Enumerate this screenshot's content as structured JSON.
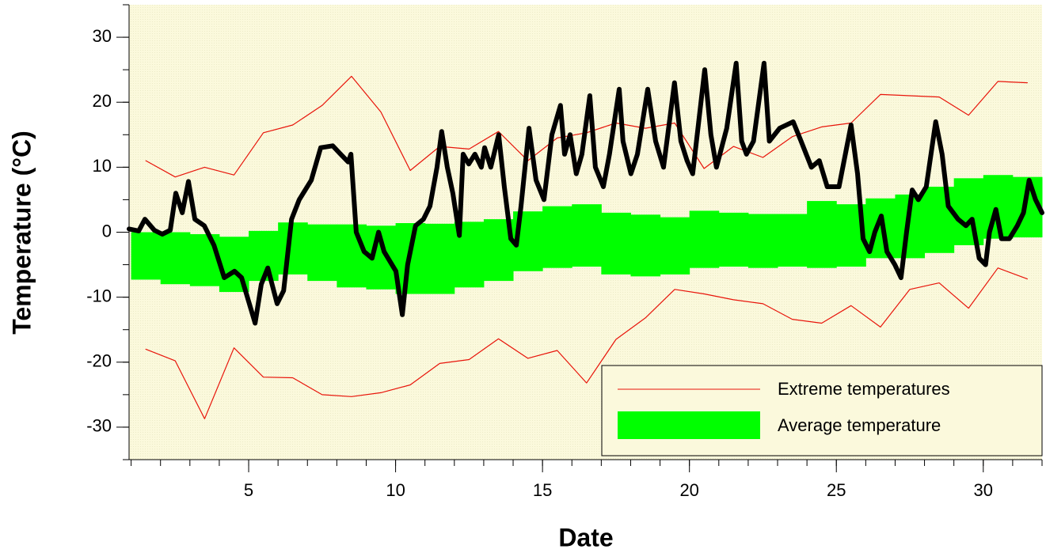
{
  "chart_data": {
    "type": "line",
    "xlabel": "Date",
    "ylabel": "Temperature (°C)",
    "xlim": [
      0.93,
      32.0
    ],
    "ylim": [
      -35,
      35
    ],
    "xticks": [
      5,
      10,
      15,
      20,
      25,
      30
    ],
    "yticks": [
      -30,
      -20,
      -10,
      0,
      10,
      20,
      30
    ],
    "xminor": [
      1,
      2,
      3,
      4,
      5,
      6,
      7,
      8,
      9,
      10,
      11,
      12,
      13,
      14,
      15,
      16,
      17,
      18,
      19,
      20,
      21,
      22,
      23,
      24,
      25,
      26,
      27,
      28,
      29,
      30,
      31,
      32
    ],
    "yminor": [
      -35,
      -30,
      -25,
      -20,
      -15,
      -10,
      -5,
      0,
      5,
      10,
      15,
      20,
      25,
      30,
      35
    ],
    "average": {
      "name": "Average temperature",
      "color": "#00ff00",
      "x": [
        1,
        2,
        3,
        4,
        5,
        6,
        7,
        8,
        9,
        10,
        11,
        12,
        13,
        14,
        15,
        16,
        17,
        18,
        19,
        20,
        21,
        22,
        23,
        24,
        25,
        26,
        27,
        28,
        29,
        30,
        31
      ],
      "high": [
        0,
        0,
        -0.3,
        -0.7,
        0.2,
        1.5,
        1.2,
        1.2,
        1,
        1.4,
        1.3,
        1.6,
        2,
        3.2,
        4,
        4.3,
        3,
        2.7,
        2.3,
        3.3,
        3,
        2.8,
        2.8,
        4.8,
        4.3,
        5.2,
        5.8,
        7,
        8.3,
        8.8,
        8.5
      ],
      "low": [
        -7.3,
        -8,
        -8.3,
        -9.2,
        -7.5,
        -6.5,
        -7.5,
        -8.5,
        -8.8,
        -9.5,
        -9.5,
        -8.5,
        -7.5,
        -6,
        -5.5,
        -5.3,
        -6.5,
        -6.8,
        -6.5,
        -5.5,
        -5.3,
        -5.5,
        -5.3,
        -5.5,
        -5.3,
        -4,
        -4,
        -3.2,
        -2,
        -1,
        -0.8
      ]
    },
    "extremes": {
      "name": "Extreme temperatures",
      "color": "#e8140a",
      "x": [
        1.5,
        2.5,
        3.5,
        4.5,
        5.5,
        6.5,
        7.5,
        8.5,
        9.5,
        10.5,
        11.5,
        12.5,
        13.5,
        14.5,
        15.5,
        16.5,
        17.5,
        18.5,
        19.5,
        20.5,
        21.5,
        22.5,
        23.5,
        24.5,
        25.5,
        26.5,
        27.5,
        28.5,
        29.5,
        30.5,
        31.5
      ],
      "upper": [
        11,
        8.5,
        10,
        8.8,
        15.3,
        16.5,
        19.5,
        24,
        18.5,
        9.5,
        13.2,
        12.8,
        15.5,
        11,
        14.5,
        15.3,
        16.8,
        16,
        16.8,
        9.8,
        13.2,
        11.5,
        14.7,
        16.2,
        16.8,
        21.2,
        21,
        20.8,
        18,
        23.2,
        23
      ],
      "lower": [
        -18,
        -19.8,
        -28.7,
        -17.8,
        -22.3,
        -22.4,
        -25,
        -25.3,
        -24.7,
        -23.5,
        -20.2,
        -19.6,
        -16.4,
        -19.4,
        -18.2,
        -23.2,
        -16.5,
        -13.2,
        -8.8,
        -9.5,
        -10.4,
        -11,
        -13.4,
        -14,
        -11.3,
        -14.6,
        -8.8,
        -7.8,
        -11.7,
        -5.5,
        -7.2
      ]
    },
    "temperature": {
      "color": "#000000",
      "x": [
        0.93,
        1.26,
        1.47,
        1.79,
        2.06,
        2.33,
        2.52,
        2.74,
        2.95,
        3.17,
        3.49,
        3.82,
        4.17,
        4.52,
        4.76,
        5.22,
        5.43,
        5.65,
        5.97,
        6.19,
        6.46,
        6.72,
        7.13,
        7.45,
        7.86,
        8.13,
        8.39,
        8.48,
        8.66,
        8.93,
        9.2,
        9.42,
        9.61,
        10.01,
        10.23,
        10.41,
        10.68,
        10.95,
        11.17,
        11.41,
        11.57,
        11.76,
        11.95,
        12.17,
        12.3,
        12.49,
        12.7,
        12.92,
        13.03,
        13.24,
        13.51,
        13.7,
        13.92,
        14.11,
        14.27,
        14.54,
        14.78,
        15.05,
        15.32,
        15.61,
        15.75,
        15.94,
        16.15,
        16.34,
        16.61,
        16.8,
        17.07,
        17.28,
        17.61,
        17.74,
        18.01,
        18.23,
        18.58,
        18.85,
        19.12,
        19.49,
        19.71,
        19.92,
        20.11,
        20.52,
        20.73,
        20.92,
        21.27,
        21.59,
        21.78,
        21.94,
        22.18,
        22.54,
        22.72,
        23.07,
        23.53,
        23.8,
        24.15,
        24.42,
        24.69,
        25.09,
        25.5,
        25.72,
        25.91,
        26.13,
        26.31,
        26.53,
        26.72,
        26.99,
        27.2,
        27.39,
        27.58,
        27.79,
        28.06,
        28.38,
        28.6,
        28.81,
        29.14,
        29.41,
        29.62,
        29.86,
        30.08,
        30.21,
        30.43,
        30.62,
        30.89,
        31.16,
        31.37,
        31.56,
        31.78,
        32.0
      ],
      "values": [
        0.5,
        0.2,
        2,
        0.3,
        -0.3,
        0.3,
        6,
        3,
        7.8,
        2,
        1,
        -2,
        -7,
        -6,
        -7,
        -14,
        -8,
        -5.5,
        -11,
        -9,
        2,
        5,
        8,
        13,
        13.3,
        12,
        10.8,
        12,
        0,
        -3,
        -4,
        0,
        -3,
        -6,
        -12.7,
        -5,
        1,
        2,
        4,
        10,
        15.5,
        10,
        6,
        -0.5,
        12,
        10.5,
        12,
        10,
        13,
        10,
        15,
        7,
        -1,
        -2,
        4,
        16,
        8,
        5,
        15,
        19.5,
        12,
        15,
        9,
        12,
        21,
        10,
        7,
        12,
        22,
        14,
        9,
        12,
        22,
        14,
        10,
        23,
        14,
        11,
        9,
        25,
        15,
        10,
        16,
        26,
        14,
        12,
        14,
        26,
        14,
        16,
        17,
        14,
        10,
        11,
        7,
        7,
        16.5,
        9,
        -1,
        -3,
        0,
        2.5,
        -3,
        -5,
        -7,
        0,
        6.5,
        5,
        7,
        17,
        12,
        4,
        2,
        1,
        2,
        -4,
        -5,
        0,
        3.5,
        -1,
        -1,
        1,
        3,
        8,
        5,
        3
      ]
    }
  }
}
